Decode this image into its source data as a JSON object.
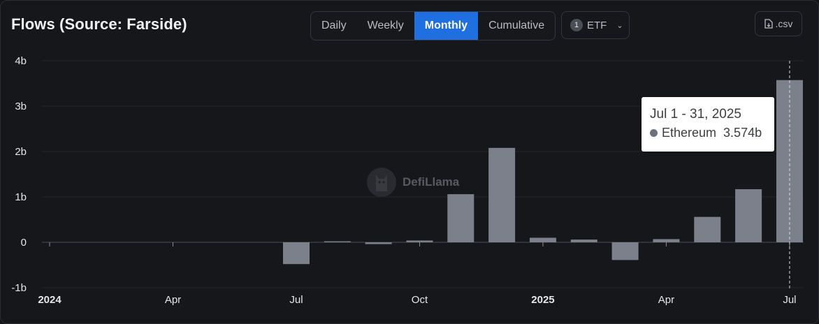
{
  "header": {
    "title": "Flows (Source: Farside)",
    "tabs": [
      {
        "label": "Daily",
        "active": false
      },
      {
        "label": "Weekly",
        "active": false
      },
      {
        "label": "Monthly",
        "active": true
      },
      {
        "label": "Cumulative",
        "active": false
      }
    ],
    "filter": {
      "count": "1",
      "label": "ETF"
    },
    "csv_label": ".csv"
  },
  "watermark": {
    "text": "DefiLlama"
  },
  "tooltip": {
    "date": "Jul 1 - 31, 2025",
    "series": "Ethereum",
    "value": "3.574b"
  },
  "colors": {
    "bar": "#7c808b",
    "accent": "#1f6fe0",
    "background": "#16171a"
  },
  "chart_data": {
    "type": "bar",
    "title": "Flows (Source: Farside)",
    "series": [
      {
        "name": "Ethereum",
        "points": [
          {
            "month": "2024-01",
            "value": 0
          },
          {
            "month": "2024-02",
            "value": 0
          },
          {
            "month": "2024-03",
            "value": 0
          },
          {
            "month": "2024-04",
            "value": 0
          },
          {
            "month": "2024-05",
            "value": 0
          },
          {
            "month": "2024-06",
            "value": 0
          },
          {
            "month": "2024-07",
            "value": -0.48
          },
          {
            "month": "2024-08",
            "value": 0.005
          },
          {
            "month": "2024-09",
            "value": -0.04
          },
          {
            "month": "2024-10",
            "value": 0.04
          },
          {
            "month": "2024-11",
            "value": 1.06
          },
          {
            "month": "2024-12",
            "value": 2.08
          },
          {
            "month": "2025-01",
            "value": 0.1
          },
          {
            "month": "2025-02",
            "value": 0.06
          },
          {
            "month": "2025-03",
            "value": -0.39
          },
          {
            "month": "2025-04",
            "value": 0.07
          },
          {
            "month": "2025-05",
            "value": 0.56
          },
          {
            "month": "2025-06",
            "value": 1.17
          },
          {
            "month": "2025-07",
            "value": 3.574
          }
        ]
      }
    ],
    "y_ticks": [
      {
        "value": 4,
        "label": "4b"
      },
      {
        "value": 3,
        "label": "3b"
      },
      {
        "value": 2,
        "label": "2b"
      },
      {
        "value": 1,
        "label": "1b"
      },
      {
        "value": 0,
        "label": "0"
      },
      {
        "value": -1,
        "label": "-1b"
      }
    ],
    "x_ticks": [
      {
        "month": "2024-01",
        "label": "2024",
        "bold": true
      },
      {
        "month": "2024-04",
        "label": "Apr",
        "bold": false
      },
      {
        "month": "2024-07",
        "label": "Jul",
        "bold": false
      },
      {
        "month": "2024-10",
        "label": "Oct",
        "bold": false
      },
      {
        "month": "2025-01",
        "label": "2025",
        "bold": true
      },
      {
        "month": "2025-04",
        "label": "Apr",
        "bold": false
      },
      {
        "month": "2025-07",
        "label": "Jul",
        "bold": false
      }
    ],
    "ylim": [
      -1,
      4
    ],
    "grid": true,
    "hover": {
      "month": "2025-07"
    }
  }
}
